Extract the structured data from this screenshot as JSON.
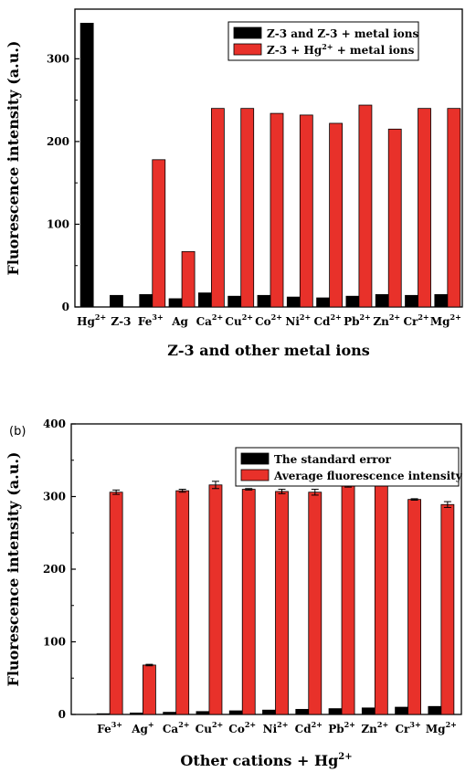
{
  "chart_data": [
    {
      "type": "bar",
      "panel_label": "",
      "xlabel": "Z-3 and other metal ions",
      "ylabel": "Fluorescence intensity (a.u.)",
      "ylim": [
        0,
        360
      ],
      "yticks": [
        "0",
        "100",
        "200",
        "300"
      ],
      "categories": [
        {
          "base": "Hg",
          "sup": "2+"
        },
        {
          "base": "Z-3",
          "sup": ""
        },
        {
          "base": "Fe",
          "sup": "3+"
        },
        {
          "base": "Ag",
          "sup": ""
        },
        {
          "base": "Ca",
          "sup": "2+"
        },
        {
          "base": "Cu",
          "sup": "2+"
        },
        {
          "base": "Co",
          "sup": "2+"
        },
        {
          "base": "Ni",
          "sup": "2+"
        },
        {
          "base": "Cd",
          "sup": "2+"
        },
        {
          "base": "Pb",
          "sup": "2+"
        },
        {
          "base": "Zn",
          "sup": "2+"
        },
        {
          "base": "Cr",
          "sup": "2+"
        },
        {
          "base": "Mg",
          "sup": "2+"
        }
      ],
      "series": [
        {
          "name": "Z-3 and Z-3 + metal ions",
          "legend_parts": [
            {
              "t": "Z-3 and Z-3 + metal ions",
              "sup": false
            }
          ],
          "color": "#000000",
          "values": [
            343,
            14,
            15,
            10,
            17,
            13,
            14,
            12,
            11,
            13,
            15,
            14,
            15
          ]
        },
        {
          "name": "Z-3 + Hg2+ + metal ions",
          "legend_parts": [
            {
              "t": "Z-3 + Hg",
              "sup": false
            },
            {
              "t": "2+",
              "sup": true
            },
            {
              "t": " + metal ions",
              "sup": false
            }
          ],
          "color": "#e8312a",
          "values": [
            null,
            null,
            178,
            67,
            240,
            240,
            234,
            232,
            222,
            244,
            215,
            240,
            240
          ]
        }
      ],
      "legend_position": "top-right",
      "grid": false
    },
    {
      "type": "bar",
      "panel_label": "(b)",
      "xlabel": "Other cations + Hg2+",
      "xlabel_parts": [
        {
          "t": "Other cations + Hg",
          "sup": false
        },
        {
          "t": "2+",
          "sup": true
        }
      ],
      "ylabel": "Fluorescence intensity (a.u.)",
      "ylim": [
        0,
        400
      ],
      "yticks": [
        "0",
        "100",
        "200",
        "300",
        "400"
      ],
      "categories": [
        {
          "base": "Fe",
          "sup": "3+"
        },
        {
          "base": "Ag",
          "sup": "+"
        },
        {
          "base": "Ca",
          "sup": "2+"
        },
        {
          "base": "Cu",
          "sup": "2+"
        },
        {
          "base": "Co",
          "sup": "2+"
        },
        {
          "base": "Ni",
          "sup": "2+"
        },
        {
          "base": "Cd",
          "sup": "2+"
        },
        {
          "base": "Pb",
          "sup": "2+"
        },
        {
          "base": "Zn",
          "sup": "2+"
        },
        {
          "base": "Cr",
          "sup": "3+"
        },
        {
          "base": "Mg",
          "sup": "2+"
        }
      ],
      "series": [
        {
          "name": "The standard error",
          "legend_parts": [
            {
              "t": "The standard error",
              "sup": false
            }
          ],
          "color": "#000000",
          "values": [
            1,
            2,
            3,
            4,
            5,
            6,
            7,
            8,
            9,
            10,
            11
          ]
        },
        {
          "name": "Average fluorescence intensity",
          "legend_parts": [
            {
              "t": "Average fluorescence intensity",
              "sup": false
            }
          ],
          "color": "#e8312a",
          "values": [
            306,
            68,
            308,
            316,
            310,
            307,
            306,
            316,
            316,
            296,
            289
          ],
          "errors": [
            3,
            1,
            2,
            5,
            1,
            3,
            4,
            3,
            1,
            1,
            4
          ]
        }
      ],
      "legend_position": "top-right",
      "grid": false
    }
  ]
}
